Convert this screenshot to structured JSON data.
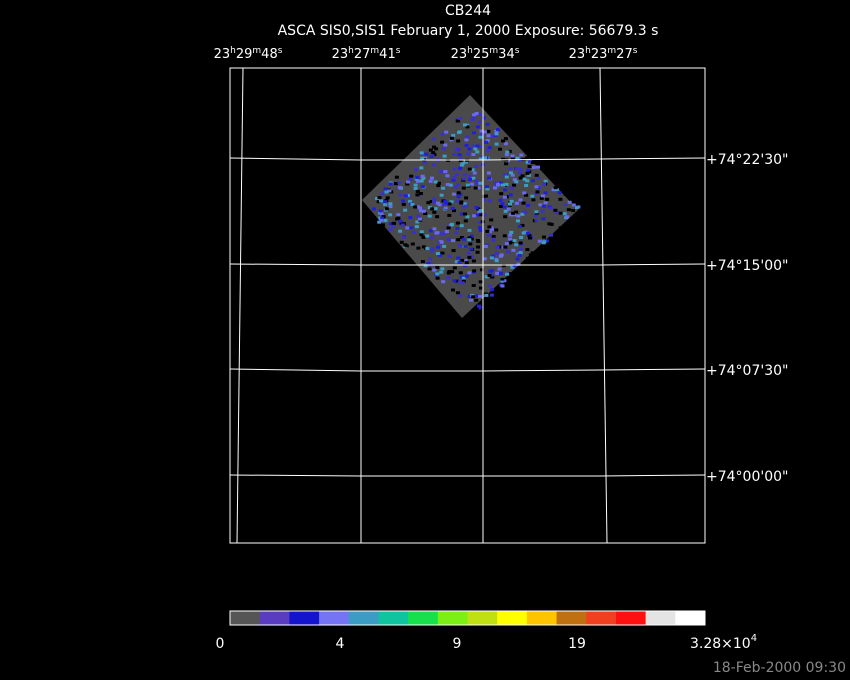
{
  "header": {
    "title": "CB244",
    "subtitle": "ASCA SIS0,SIS1 February 1, 2000 Exposure: 56679.3 s"
  },
  "ra_labels": [
    [
      "23",
      "h",
      "29",
      "m",
      "48",
      "s"
    ],
    [
      "23",
      "h",
      "27",
      "m",
      "41",
      "s"
    ],
    [
      "23",
      "h",
      "25",
      "m",
      "34",
      "s"
    ],
    [
      "23",
      "h",
      "23",
      "m",
      "27",
      "s"
    ]
  ],
  "dec_labels": [
    "+74°22'30\"",
    "+74°15'00\"",
    "+74°07'30\"",
    "+74°00'00\""
  ],
  "colorbar": {
    "colors": [
      "#555555",
      "#5a3cc0",
      "#1414cc",
      "#7474f4",
      "#3c9cc4",
      "#10c4a0",
      "#18e04c",
      "#7cf014",
      "#c0e014",
      "#ffff00",
      "#ffc400",
      "#c07010",
      "#f04020",
      "#ff1010",
      "#e4e4e4",
      "#ffffff"
    ],
    "labels": [
      "0",
      "4",
      "9",
      "19"
    ],
    "max_label": {
      "base": "3.28×10",
      "exponent": "4"
    }
  },
  "timestamp": "18-Feb-2000 09:30"
}
